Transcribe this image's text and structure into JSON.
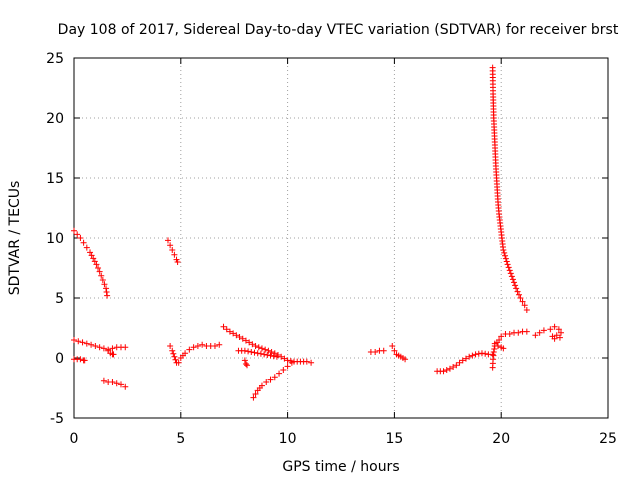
{
  "chart_data": {
    "type": "scatter",
    "title": "Day 108 of 2017, Sidereal Day-to-day VTEC variation (SDTVAR) for receiver brst",
    "xlabel": "GPS time / hours",
    "ylabel": "SDTVAR / TECUs",
    "xlim": [
      0,
      25
    ],
    "ylim": [
      -5,
      25
    ],
    "x_ticks": [
      "0",
      "5",
      "10",
      "15",
      "20",
      "25"
    ],
    "y_ticks": [
      "-5",
      "0",
      "5",
      "10",
      "15",
      "20",
      "25"
    ],
    "grid": true,
    "marker": "+",
    "color": "#ff0000",
    "segments": [
      {
        "name": "seg-1",
        "points": [
          [
            0.0,
            10.6
          ],
          [
            0.15,
            10.3
          ],
          [
            0.3,
            10.0
          ],
          [
            0.45,
            9.6
          ],
          [
            0.6,
            9.2
          ],
          [
            0.75,
            8.8
          ],
          [
            0.9,
            8.3
          ],
          [
            1.05,
            7.8
          ],
          [
            1.2,
            7.2
          ],
          [
            1.35,
            6.5
          ],
          [
            1.5,
            5.8
          ],
          [
            1.55,
            5.2
          ]
        ]
      },
      {
        "name": "seg-2",
        "points": [
          [
            0.0,
            1.5
          ],
          [
            0.2,
            1.4
          ],
          [
            0.4,
            1.3
          ],
          [
            0.6,
            1.2
          ],
          [
            0.8,
            1.1
          ],
          [
            1.0,
            1.0
          ],
          [
            1.2,
            0.9
          ],
          [
            1.4,
            0.8
          ],
          [
            1.6,
            0.7
          ],
          [
            1.8,
            0.8
          ],
          [
            2.0,
            0.9
          ],
          [
            2.2,
            0.9
          ],
          [
            2.4,
            0.9
          ]
        ]
      },
      {
        "name": "seg-3",
        "points": [
          [
            0.0,
            -0.1
          ],
          [
            0.15,
            -0.1
          ],
          [
            0.3,
            -0.1
          ],
          [
            0.45,
            -0.2
          ],
          [
            0.5,
            -0.2
          ]
        ]
      },
      {
        "name": "seg-4",
        "points": [
          [
            1.4,
            -1.9
          ],
          [
            1.6,
            -2.0
          ],
          [
            1.8,
            -2.0
          ],
          [
            2.0,
            -2.1
          ],
          [
            2.2,
            -2.2
          ],
          [
            2.4,
            -2.4
          ]
        ]
      },
      {
        "name": "seg-5",
        "points": [
          [
            1.6,
            0.6
          ],
          [
            1.7,
            0.4
          ],
          [
            1.8,
            0.3
          ],
          [
            1.85,
            0.3
          ]
        ]
      },
      {
        "name": "seg-6",
        "points": [
          [
            4.4,
            9.8
          ],
          [
            4.5,
            9.4
          ],
          [
            4.6,
            9.0
          ],
          [
            4.7,
            8.6
          ],
          [
            4.8,
            8.2
          ],
          [
            4.85,
            8.0
          ]
        ]
      },
      {
        "name": "seg-7",
        "points": [
          [
            4.5,
            1.0
          ],
          [
            4.6,
            0.6
          ],
          [
            4.7,
            0.1
          ],
          [
            4.8,
            -0.4
          ],
          [
            4.9,
            -0.4
          ],
          [
            5.0,
            0.0
          ],
          [
            5.2,
            0.4
          ],
          [
            5.4,
            0.7
          ],
          [
            5.6,
            0.9
          ],
          [
            5.8,
            1.0
          ],
          [
            6.0,
            1.1
          ],
          [
            6.2,
            1.0
          ],
          [
            6.4,
            1.0
          ],
          [
            6.6,
            1.0
          ],
          [
            6.8,
            1.1
          ]
        ]
      },
      {
        "name": "seg-8",
        "points": [
          [
            7.0,
            2.6
          ],
          [
            7.3,
            2.2
          ],
          [
            7.6,
            1.9
          ],
          [
            7.9,
            1.6
          ],
          [
            8.2,
            1.3
          ],
          [
            8.5,
            1.0
          ],
          [
            8.8,
            0.8
          ],
          [
            9.1,
            0.6
          ],
          [
            9.4,
            0.4
          ],
          [
            9.7,
            0.1
          ],
          [
            10.0,
            -0.2
          ],
          [
            10.3,
            -0.3
          ],
          [
            10.6,
            -0.3
          ],
          [
            10.9,
            -0.3
          ],
          [
            11.1,
            -0.4
          ]
        ]
      },
      {
        "name": "seg-9",
        "points": [
          [
            7.7,
            0.6
          ],
          [
            8.0,
            0.6
          ],
          [
            8.3,
            0.5
          ],
          [
            8.6,
            0.4
          ],
          [
            8.9,
            0.3
          ],
          [
            9.2,
            0.2
          ],
          [
            9.5,
            0.1
          ]
        ]
      },
      {
        "name": "seg-10",
        "points": [
          [
            8.0,
            -0.2
          ],
          [
            8.05,
            -0.5
          ],
          [
            8.1,
            -0.6
          ]
        ]
      },
      {
        "name": "seg-11",
        "points": [
          [
            8.4,
            -3.3
          ],
          [
            8.6,
            -2.7
          ],
          [
            8.8,
            -2.3
          ],
          [
            9.0,
            -2.0
          ],
          [
            9.2,
            -1.8
          ],
          [
            9.4,
            -1.6
          ],
          [
            9.6,
            -1.3
          ],
          [
            9.8,
            -1.0
          ],
          [
            10.0,
            -0.7
          ],
          [
            10.2,
            -0.4
          ]
        ]
      },
      {
        "name": "seg-12",
        "points": [
          [
            13.9,
            0.5
          ],
          [
            14.1,
            0.5
          ],
          [
            14.3,
            0.6
          ],
          [
            14.5,
            0.6
          ]
        ]
      },
      {
        "name": "seg-13",
        "points": [
          [
            14.9,
            1.0
          ],
          [
            15.0,
            0.6
          ],
          [
            15.1,
            0.3
          ],
          [
            15.2,
            0.2
          ],
          [
            15.3,
            0.1
          ],
          [
            15.4,
            0.0
          ],
          [
            15.5,
            -0.1
          ]
        ]
      },
      {
        "name": "seg-14",
        "points": [
          [
            17.0,
            -1.1
          ],
          [
            17.3,
            -1.1
          ],
          [
            17.6,
            -0.9
          ],
          [
            17.9,
            -0.6
          ],
          [
            18.2,
            -0.2
          ],
          [
            18.5,
            0.1
          ],
          [
            18.8,
            0.3
          ],
          [
            19.1,
            0.4
          ],
          [
            19.4,
            0.3
          ],
          [
            19.6,
            0.3
          ]
        ]
      },
      {
        "name": "seg-15",
        "points": [
          [
            19.6,
            24.2
          ],
          [
            19.62,
            22.0
          ],
          [
            19.65,
            20.0
          ],
          [
            19.7,
            18.0
          ],
          [
            19.75,
            16.0
          ],
          [
            19.8,
            14.5
          ],
          [
            19.85,
            13.0
          ],
          [
            19.9,
            12.0
          ],
          [
            20.0,
            10.5
          ],
          [
            20.1,
            9.0
          ],
          [
            20.3,
            7.8
          ],
          [
            20.5,
            6.8
          ],
          [
            20.7,
            5.8
          ],
          [
            20.9,
            5.0
          ],
          [
            21.1,
            4.4
          ],
          [
            21.2,
            4.0
          ]
        ]
      },
      {
        "name": "seg-16",
        "points": [
          [
            19.6,
            -0.8
          ],
          [
            19.62,
            -0.1
          ],
          [
            19.65,
            0.5
          ],
          [
            19.7,
            1.0
          ],
          [
            19.8,
            1.3
          ],
          [
            19.9,
            1.5
          ],
          [
            20.0,
            1.8
          ],
          [
            20.2,
            2.0
          ],
          [
            20.4,
            2.0
          ],
          [
            20.6,
            2.1
          ],
          [
            20.8,
            2.1
          ],
          [
            21.0,
            2.2
          ],
          [
            21.2,
            2.2
          ]
        ]
      },
      {
        "name": "seg-17",
        "points": [
          [
            19.7,
            1.2
          ],
          [
            19.85,
            1.0
          ],
          [
            20.0,
            0.9
          ],
          [
            20.1,
            0.8
          ]
        ]
      },
      {
        "name": "seg-18",
        "points": [
          [
            21.6,
            1.9
          ],
          [
            21.8,
            2.1
          ],
          [
            22.0,
            2.3
          ]
        ]
      },
      {
        "name": "seg-19",
        "points": [
          [
            22.3,
            2.4
          ],
          [
            22.5,
            2.6
          ],
          [
            22.7,
            2.4
          ],
          [
            22.8,
            2.1
          ],
          [
            22.6,
            1.9
          ],
          [
            22.4,
            1.8
          ],
          [
            22.5,
            1.6
          ],
          [
            22.75,
            1.7
          ]
        ]
      }
    ]
  }
}
